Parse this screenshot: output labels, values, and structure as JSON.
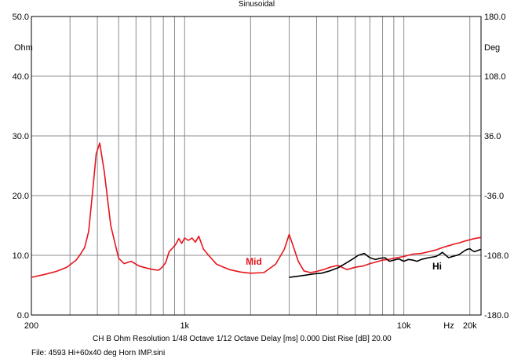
{
  "chart_data": {
    "type": "line",
    "title": "Sinusoidal",
    "y_unit_left": "Ohm",
    "y_unit_right": "Deg",
    "x_unit": "Hz",
    "xscale": "log",
    "xlim": [
      200,
      22500
    ],
    "ylim": [
      0,
      50
    ],
    "ylim_right": [
      -180,
      180
    ],
    "x_tick_labels": [
      {
        "x": 200,
        "label": "200"
      },
      {
        "x": 1000,
        "label": "1k"
      },
      {
        "x": 10000,
        "label": "10k"
      },
      {
        "x": 20000,
        "label": "20k"
      }
    ],
    "y_ticks": [
      0,
      10,
      20,
      30,
      40,
      50
    ],
    "y_tick_labels": [
      "0.0",
      "10.0",
      "20.0",
      "30.0",
      "40.0",
      "50.0"
    ],
    "y_right_ticks": [
      -180,
      -108,
      -36,
      36,
      108,
      180
    ],
    "y_right_tick_labels": [
      "-180.0",
      "-108.0",
      "-36.0",
      "36.0",
      "108.0",
      "180.0"
    ],
    "grid": true,
    "series": [
      {
        "name": "Mid",
        "color": "#e8141c",
        "x": [
          200,
          230,
          260,
          290,
          320,
          335,
          350,
          365,
          380,
          395,
          410,
          430,
          460,
          500,
          530,
          570,
          620,
          680,
          720,
          760,
          790,
          820,
          850,
          880,
          910,
          940,
          970,
          1000,
          1040,
          1080,
          1120,
          1160,
          1220,
          1300,
          1400,
          1600,
          1800,
          2000,
          2300,
          2600,
          2850,
          3000,
          3150,
          3300,
          3500,
          3750,
          4000,
          4300,
          4600,
          5000,
          5500,
          6000,
          6500,
          7000,
          7500,
          8000,
          8500,
          9000,
          10000,
          11000,
          12000,
          13000,
          14000,
          15000,
          16000,
          17000,
          18000,
          19000,
          20000,
          21000,
          22500
        ],
        "y": [
          6.3,
          6.8,
          7.3,
          8.0,
          9.2,
          10.2,
          11.3,
          14.0,
          20.5,
          27.0,
          28.8,
          24.0,
          15.0,
          9.5,
          8.6,
          9.0,
          8.2,
          7.8,
          7.6,
          7.5,
          8.0,
          8.8,
          10.6,
          11.2,
          11.8,
          12.8,
          12.0,
          12.9,
          12.5,
          12.9,
          12.2,
          13.2,
          11.0,
          9.8,
          8.5,
          7.6,
          7.2,
          7.0,
          7.1,
          8.5,
          11.0,
          13.5,
          11.2,
          9.0,
          7.4,
          7.1,
          7.3,
          7.6,
          8.0,
          8.3,
          7.6,
          8.0,
          8.2,
          8.6,
          8.9,
          9.2,
          9.3,
          9.5,
          9.8,
          10.2,
          10.3,
          10.6,
          10.9,
          11.3,
          11.6,
          11.9,
          12.1,
          12.4,
          12.6,
          12.8,
          13.0
        ]
      },
      {
        "name": "Hi",
        "color": "#000000",
        "x": [
          3000,
          3300,
          3600,
          3900,
          4200,
          4600,
          5000,
          5400,
          5800,
          6200,
          6600,
          7000,
          7400,
          7800,
          8200,
          8600,
          9000,
          9500,
          10000,
          10500,
          11000,
          11500,
          12000,
          13000,
          14000,
          14500,
          15000,
          16000,
          17000,
          17500,
          18000,
          19000,
          19500,
          20000,
          20500,
          21000,
          22500
        ],
        "y": [
          6.3,
          6.5,
          6.7,
          6.9,
          7.0,
          7.4,
          7.9,
          8.6,
          9.3,
          10.0,
          10.3,
          9.6,
          9.3,
          9.5,
          9.6,
          9.0,
          9.2,
          9.4,
          9.0,
          9.3,
          9.2,
          9.0,
          9.3,
          9.6,
          9.8,
          10.1,
          10.5,
          9.6,
          9.9,
          10.0,
          10.2,
          10.8,
          11.0,
          11.1,
          10.8,
          10.6,
          11.0
        ]
      }
    ],
    "annotations": [
      {
        "text": "Mid",
        "x": 1900,
        "y": 8.4,
        "color": "#e8141c"
      },
      {
        "text": "Hi",
        "x": 13500,
        "y": 7.6,
        "color": "#000000"
      }
    ],
    "footer_line1": "CH B   Ohm   Resolution 1/48 Octave    1/12 Octave   Delay [ms] 0.000    Dist Rise [dB] 20.00",
    "footer_line2": "File: 4593 Hi+60x40 deg Horn  IMP.sini"
  }
}
